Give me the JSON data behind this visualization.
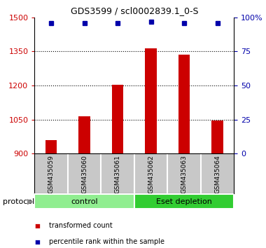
{
  "title": "GDS3599 / scl0002839.1_0-S",
  "samples": [
    "GSM435059",
    "GSM435060",
    "GSM435061",
    "GSM435062",
    "GSM435063",
    "GSM435064"
  ],
  "red_values": [
    960,
    1065,
    1205,
    1365,
    1335,
    1047
  ],
  "blue_values": [
    96,
    96,
    96,
    97,
    96,
    96
  ],
  "ylim_left": [
    900,
    1500
  ],
  "ylim_right": [
    0,
    100
  ],
  "yticks_left": [
    900,
    1050,
    1200,
    1350,
    1500
  ],
  "yticks_right": [
    0,
    25,
    50,
    75,
    100
  ],
  "ytick_labels_right": [
    "0",
    "25",
    "50",
    "75",
    "100%"
  ],
  "groups": [
    {
      "label": "control",
      "indices": [
        0,
        1,
        2
      ],
      "color": "#90EE90"
    },
    {
      "label": "Eset depletion",
      "indices": [
        3,
        4,
        5
      ],
      "color": "#32CD32"
    }
  ],
  "protocol_label": "protocol",
  "bar_color": "#CC0000",
  "dot_color": "#0000AA",
  "bg_color": "#FFFFFF",
  "sample_bg_color": "#C8C8C8",
  "bar_width": 0.35,
  "legend_items": [
    {
      "color": "#CC0000",
      "label": "transformed count"
    },
    {
      "color": "#0000AA",
      "label": "percentile rank within the sample"
    }
  ]
}
